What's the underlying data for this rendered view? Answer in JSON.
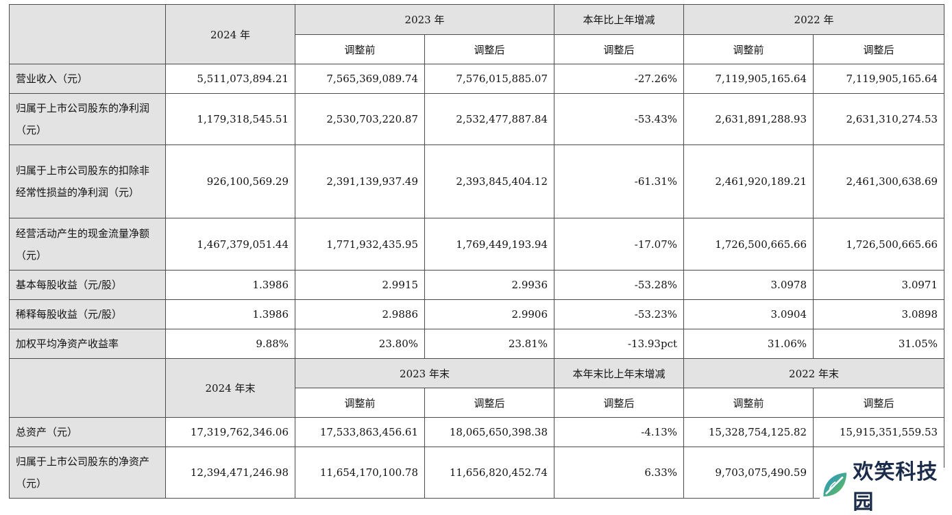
{
  "header1": {
    "year_a": "2024 年",
    "year_b": "2023 年",
    "change": "本年比上年增减",
    "year_c": "2022 年",
    "before": "调整前",
    "after": "调整后",
    "change_after": "调整后"
  },
  "rows1": [
    {
      "label": "营业收入（元）",
      "v": [
        "5,511,073,894.21",
        "7,565,369,089.74",
        "7,576,015,885.07",
        "-27.26%",
        "7,119,905,165.64",
        "7,119,905,165.64"
      ]
    },
    {
      "label": "归属于上市公司股东的净利润（元）",
      "v": [
        "1,179,318,545.51",
        "2,530,703,220.87",
        "2,532,477,887.84",
        "-53.43%",
        "2,631,891,288.93",
        "2,631,310,274.53"
      ]
    },
    {
      "label": "归属于上市公司股东的扣除非经常性损益的净利润（元）",
      "v": [
        "926,100,569.29",
        "2,391,139,937.49",
        "2,393,845,404.12",
        "-61.31%",
        "2,461,920,189.21",
        "2,461,300,638.69"
      ]
    },
    {
      "label": "经营活动产生的现金流量净额（元）",
      "v": [
        "1,467,379,051.44",
        "1,771,932,435.95",
        "1,769,449,193.94",
        "-17.07%",
        "1,726,500,665.66",
        "1,726,500,665.66"
      ]
    },
    {
      "label": "基本每股收益（元/股）",
      "v": [
        "1.3986",
        "2.9915",
        "2.9936",
        "-53.28%",
        "3.0978",
        "3.0971"
      ]
    },
    {
      "label": "稀释每股收益（元/股）",
      "v": [
        "1.3986",
        "2.9886",
        "2.9906",
        "-53.23%",
        "3.0904",
        "3.0898"
      ]
    },
    {
      "label": "加权平均净资产收益率",
      "v": [
        "9.88%",
        "23.80%",
        "23.81%",
        "-13.93pct",
        "31.06%",
        "31.05%"
      ]
    }
  ],
  "header2": {
    "year_a": "2024 年末",
    "year_b": "2023 年末",
    "change": "本年末比上年末增减",
    "year_c": "2022 年末",
    "before": "调整前",
    "after": "调整后",
    "change_after": "调整后"
  },
  "rows2": [
    {
      "label": "总资产（元）",
      "v": [
        "17,319,762,346.06",
        "17,533,863,456.61",
        "18,065,650,398.38",
        "-4.13%",
        "15,328,754,125.82",
        "15,915,351,559.53"
      ]
    },
    {
      "label": "归属于上市公司股东的净资产（元）",
      "v": [
        "12,394,471,246.98",
        "11,654,170,100.78",
        "11,656,820,452.74",
        "6.33%",
        "9,703,075,490.59",
        ""
      ]
    }
  ],
  "watermark": {
    "text": "欢笑科技园",
    "color_a": "#1e90d6",
    "color_b": "#6cc04a"
  }
}
